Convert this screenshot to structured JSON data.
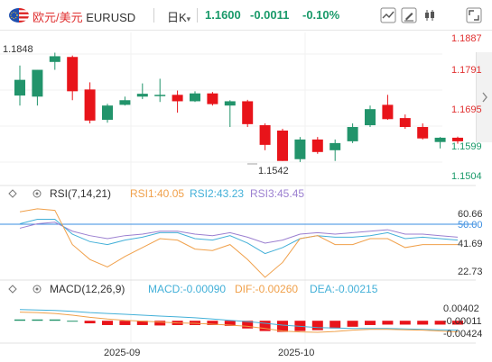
{
  "header": {
    "pair_cn": "欧元/美元",
    "symbol": "EURUSD",
    "timeframe": "日K",
    "timeframe_caret": "▾",
    "last": "1.1600",
    "change": "-0.0011",
    "change_pct": "-0.10%",
    "icons": [
      "line-chart-icon",
      "draw-pen-icon",
      "candle-settings-icon",
      "expand-icon"
    ]
  },
  "colors": {
    "up": "#22946b",
    "down": "#e8141a",
    "rsi1": "#f0a04a",
    "rsi2": "#43b0d8",
    "rsi3": "#9b7fd0",
    "macd_line": "#43b0d8",
    "dif": "#f0a04a",
    "dea": "#43b0d8",
    "ref_line": "#3a8de0"
  },
  "main_chart": {
    "y_labels": [
      "1.1887",
      "1.1791",
      "1.1695",
      "1.1599",
      "1.1504"
    ],
    "high_label": "1.1848",
    "low_label": "1.1542"
  },
  "rsi": {
    "title": "RSI(7,14,21)",
    "rsi1_label": "RSI1:40.05",
    "rsi2_label": "RSI2:43.23",
    "rsi3_label": "RSI3:45.45",
    "y_labels": [
      "60.66",
      "50.00",
      "41.69",
      "22.73"
    ]
  },
  "macd": {
    "title": "MACD(12,26,9)",
    "macd_label": "MACD:-0.00090",
    "dif_label": "DIF:-0.00260",
    "dea_label": "DEA:-0.00215",
    "y_labels": [
      "0.00402",
      "-0.00011",
      "-0.00424"
    ]
  },
  "x_axis": {
    "labels": [
      "2025-09",
      "2025-10"
    ]
  },
  "chart_data": {
    "type": "candlestick",
    "ylim": [
      1.1504,
      1.1887
    ],
    "candles": [
      {
        "o": 1.1728,
        "h": 1.1812,
        "l": 1.17,
        "c": 1.1772
      },
      {
        "o": 1.1725,
        "h": 1.18,
        "l": 1.17,
        "c": 1.18
      },
      {
        "o": 1.1822,
        "h": 1.1848,
        "l": 1.18,
        "c": 1.1838
      },
      {
        "o": 1.1836,
        "h": 1.184,
        "l": 1.1715,
        "c": 1.174
      },
      {
        "o": 1.1745,
        "h": 1.1765,
        "l": 1.165,
        "c": 1.1658
      },
      {
        "o": 1.166,
        "h": 1.1705,
        "l": 1.1652,
        "c": 1.17
      },
      {
        "o": 1.1702,
        "h": 1.1725,
        "l": 1.17,
        "c": 1.1715
      },
      {
        "o": 1.1725,
        "h": 1.1762,
        "l": 1.1718,
        "c": 1.1733
      },
      {
        "o": 1.173,
        "h": 1.1775,
        "l": 1.171,
        "c": 1.173
      },
      {
        "o": 1.173,
        "h": 1.1742,
        "l": 1.168,
        "c": 1.1712
      },
      {
        "o": 1.1712,
        "h": 1.174,
        "l": 1.171,
        "c": 1.1734
      },
      {
        "o": 1.1734,
        "h": 1.1738,
        "l": 1.17,
        "c": 1.1704
      },
      {
        "o": 1.17,
        "h": 1.1715,
        "l": 1.164,
        "c": 1.1712
      },
      {
        "o": 1.1712,
        "h": 1.1716,
        "l": 1.164,
        "c": 1.1648
      },
      {
        "o": 1.1645,
        "h": 1.165,
        "l": 1.1575,
        "c": 1.159
      },
      {
        "o": 1.163,
        "h": 1.1635,
        "l": 1.1545,
        "c": 1.1545
      },
      {
        "o": 1.155,
        "h": 1.1612,
        "l": 1.1542,
        "c": 1.1605
      },
      {
        "o": 1.1605,
        "h": 1.1612,
        "l": 1.1565,
        "c": 1.157
      },
      {
        "o": 1.1575,
        "h": 1.1605,
        "l": 1.1545,
        "c": 1.1595
      },
      {
        "o": 1.16,
        "h": 1.165,
        "l": 1.1595,
        "c": 1.164
      },
      {
        "o": 1.1645,
        "h": 1.17,
        "l": 1.164,
        "c": 1.169
      },
      {
        "o": 1.1702,
        "h": 1.173,
        "l": 1.166,
        "c": 1.1662
      },
      {
        "o": 1.1665,
        "h": 1.1675,
        "l": 1.1635,
        "c": 1.164
      },
      {
        "o": 1.164,
        "h": 1.165,
        "l": 1.1605,
        "c": 1.1608
      },
      {
        "o": 1.1598,
        "h": 1.1612,
        "l": 1.158,
        "c": 1.161
      },
      {
        "o": 1.161,
        "h": 1.1613,
        "l": 1.1593,
        "c": 1.16
      }
    ],
    "rsi_ylim": [
      18,
      70
    ],
    "rsi1": [
      62,
      64,
      63,
      40,
      30,
      25,
      32,
      38,
      44,
      43,
      37,
      36,
      40,
      30,
      18,
      28,
      44,
      46,
      40,
      40,
      44,
      44,
      38,
      40,
      40,
      40
    ],
    "rsi2": [
      54,
      57,
      57,
      47,
      42,
      40,
      43,
      45,
      48,
      48,
      44,
      43,
      46,
      41,
      34,
      38,
      44,
      46,
      45,
      45,
      46,
      48,
      44,
      45,
      44,
      43
    ],
    "rsi3": [
      51,
      54,
      55,
      49,
      46,
      44,
      46,
      47,
      49,
      49,
      47,
      46,
      48,
      45,
      41,
      43,
      47,
      48,
      47,
      48,
      49,
      50,
      47,
      47,
      46,
      45
    ],
    "macd_ylim": [
      -0.005,
      0.0055
    ],
    "macd_hist": [
      0.0003,
      0.0003,
      0.0003,
      0.0,
      -0.0006,
      -0.001,
      -0.001,
      -0.001,
      -0.0011,
      -0.001,
      -0.001,
      -0.001,
      -0.0012,
      -0.0018,
      -0.0024,
      -0.0026,
      -0.0024,
      -0.0022,
      -0.0018,
      -0.0014,
      -0.001,
      -0.0009,
      -0.0009,
      -0.0009,
      -0.0009,
      -0.0009
    ],
    "dif": [
      0.002,
      0.0019,
      0.0017,
      0.0013,
      0.0008,
      0.0004,
      0.0001,
      -0.0001,
      -0.0003,
      -0.0005,
      -0.0006,
      -0.0008,
      -0.001,
      -0.0013,
      -0.0018,
      -0.0024,
      -0.0026,
      -0.0027,
      -0.0025,
      -0.0022,
      -0.002,
      -0.002,
      -0.0021,
      -0.0022,
      -0.0024,
      -0.0026
    ],
    "dea": [
      0.0026,
      0.0025,
      0.0024,
      0.0022,
      0.0019,
      0.0017,
      0.0015,
      0.0013,
      0.0011,
      0.0009,
      0.0007,
      0.0004,
      0.0001,
      -0.0002,
      -0.0006,
      -0.001,
      -0.0013,
      -0.0016,
      -0.0017,
      -0.0018,
      -0.0018,
      -0.0018,
      -0.0019,
      -0.002,
      -0.0021,
      -0.0022
    ]
  }
}
